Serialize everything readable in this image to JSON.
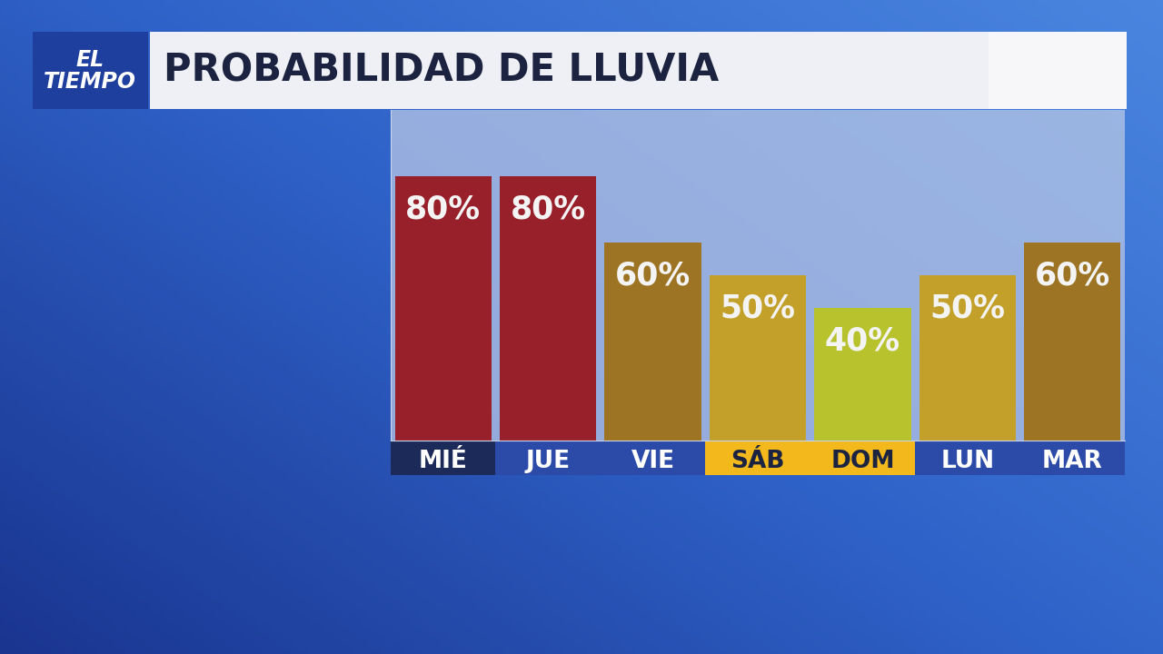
{
  "chart_data": {
    "type": "bar",
    "title": "PROBABILIDAD DE LLUVIA",
    "annotations": [
      "EL TIEMPO"
    ],
    "categories": [
      "MIÉ",
      "JUE",
      "VIE",
      "SÁB",
      "DOM",
      "LUN",
      "MAR"
    ],
    "values": [
      80,
      80,
      60,
      50,
      40,
      50,
      60
    ],
    "value_labels": [
      "80%",
      "80%",
      "60%",
      "50%",
      "40%",
      "50%",
      "60%"
    ],
    "colors": [
      "#97202a",
      "#97202a",
      "#9c7424",
      "#c2a02a",
      "#b7c22c",
      "#c2a02a",
      "#9c7424"
    ],
    "ylim": [
      0,
      100
    ],
    "data_labels": true,
    "tick_labels": "x"
  }
}
